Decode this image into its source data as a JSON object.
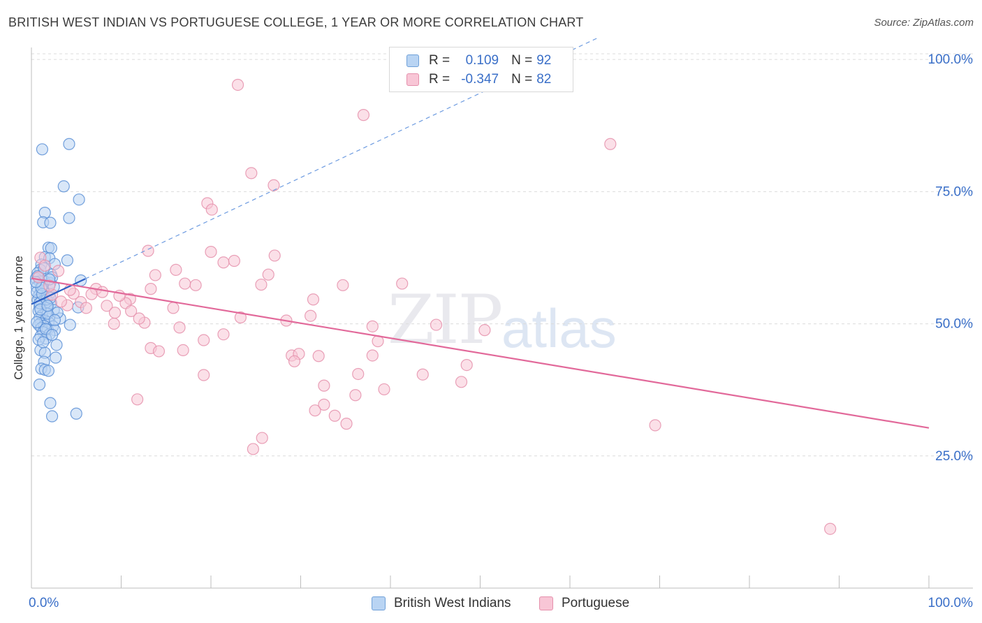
{
  "header": {
    "title": "BRITISH WEST INDIAN VS PORTUGUESE COLLEGE, 1 YEAR OR MORE CORRELATION CHART",
    "source": "Source: ZipAtlas.com"
  },
  "watermark": {
    "zip": "ZIP",
    "atlas": "atlas"
  },
  "legend": {
    "series": [
      {
        "r_label": "R =",
        "r_value": "0.109",
        "n_label": "N =",
        "n_value": "92"
      },
      {
        "r_label": "R =",
        "r_value": "-0.347",
        "n_label": "N =",
        "n_value": "82"
      }
    ]
  },
  "bottom_legend": {
    "blue": "British West Indians",
    "pink": "Portuguese"
  },
  "colors": {
    "blue_fill": "#b9d4f3",
    "blue_stroke": "#5a8fd6",
    "blue_line": "#2c5fc4",
    "pink_fill": "#f8c6d6",
    "pink_stroke": "#e590ac",
    "pink_line": "#e2699a",
    "tick_text": "#3a6fc8",
    "grid": "#dcdcdc"
  },
  "chart_data": {
    "type": "scatter",
    "title": "BRITISH WEST INDIAN VS PORTUGUESE COLLEGE, 1 YEAR OR MORE CORRELATION CHART",
    "xlabel": "",
    "ylabel": "College, 1 year or more",
    "xlim": [
      0,
      100
    ],
    "ylim": [
      0,
      102
    ],
    "x_tick_labels": [
      "0.0%",
      "100.0%"
    ],
    "y_ticks": [
      25,
      50,
      75,
      100
    ],
    "y_tick_labels": [
      "25.0%",
      "50.0%",
      "75.0%",
      "100.0%"
    ],
    "series": [
      {
        "name": "British West Indians",
        "r": 0.109,
        "n": 92,
        "trend": {
          "x0": 0.0,
          "y0": 53.7,
          "x1": 6.0,
          "y1": 58.5,
          "dashed_x1": 63.0,
          "dashed_y1": 104.0
        },
        "points": [
          [
            1.2,
            83.0
          ],
          [
            4.2,
            84.0
          ],
          [
            3.6,
            76.0
          ],
          [
            5.3,
            73.5
          ],
          [
            1.5,
            71.0
          ],
          [
            4.2,
            70.0
          ],
          [
            1.3,
            69.2
          ],
          [
            2.1,
            69.1
          ],
          [
            1.9,
            64.4
          ],
          [
            2.2,
            64.3
          ],
          [
            1.5,
            62.6
          ],
          [
            2.0,
            62.4
          ],
          [
            1.1,
            61.2
          ],
          [
            4.0,
            62.0
          ],
          [
            2.6,
            61.3
          ],
          [
            1.0,
            60.2
          ],
          [
            0.7,
            59.6
          ],
          [
            2.2,
            59.3
          ],
          [
            0.5,
            58.6
          ],
          [
            1.4,
            58.1
          ],
          [
            0.9,
            58.0
          ],
          [
            2.1,
            57.7
          ],
          [
            5.5,
            58.2
          ],
          [
            0.6,
            56.9
          ],
          [
            1.3,
            56.3
          ],
          [
            1.0,
            55.8
          ],
          [
            2.0,
            55.6
          ],
          [
            0.8,
            55.3
          ],
          [
            1.5,
            55.0
          ],
          [
            0.7,
            54.5
          ],
          [
            1.1,
            54.2
          ],
          [
            2.2,
            53.9
          ],
          [
            1.7,
            53.6
          ],
          [
            0.9,
            53.2
          ],
          [
            1.8,
            53.0
          ],
          [
            2.5,
            52.6
          ],
          [
            0.8,
            52.4
          ],
          [
            5.2,
            53.1
          ],
          [
            1.6,
            52.0
          ],
          [
            1.2,
            51.6
          ],
          [
            2.0,
            51.4
          ],
          [
            0.9,
            51.1
          ],
          [
            3.2,
            51.0
          ],
          [
            1.5,
            50.6
          ],
          [
            1.9,
            50.3
          ],
          [
            1.0,
            50.1
          ],
          [
            0.8,
            49.8
          ],
          [
            1.4,
            49.6
          ],
          [
            2.4,
            49.5
          ],
          [
            4.3,
            49.8
          ],
          [
            1.1,
            49.2
          ],
          [
            1.8,
            48.9
          ],
          [
            2.6,
            48.8
          ],
          [
            1.3,
            48.4
          ],
          [
            2.0,
            48.0
          ],
          [
            1.0,
            47.6
          ],
          [
            1.6,
            47.2
          ],
          [
            2.8,
            46.0
          ],
          [
            1.0,
            45.0
          ],
          [
            1.5,
            44.5
          ],
          [
            2.7,
            43.6
          ],
          [
            1.4,
            42.8
          ],
          [
            1.1,
            41.5
          ],
          [
            1.5,
            41.3
          ],
          [
            1.9,
            41.1
          ],
          [
            0.9,
            38.5
          ],
          [
            2.1,
            35.0
          ],
          [
            2.3,
            32.5
          ],
          [
            5.0,
            33.0
          ],
          [
            0.6,
            56.0
          ],
          [
            1.2,
            57.3
          ],
          [
            2.3,
            58.8
          ],
          [
            0.9,
            53.9
          ],
          [
            1.7,
            54.6
          ],
          [
            2.9,
            52.1
          ],
          [
            0.6,
            50.3
          ],
          [
            1.8,
            51.9
          ],
          [
            1.2,
            55.6
          ],
          [
            2.5,
            57.0
          ],
          [
            0.7,
            59.0
          ],
          [
            1.4,
            60.5
          ],
          [
            2.0,
            58.4
          ],
          [
            1.0,
            52.7
          ],
          [
            1.6,
            49.0
          ],
          [
            2.3,
            47.9
          ],
          [
            0.8,
            47.0
          ],
          [
            1.3,
            46.5
          ],
          [
            2.1,
            54.9
          ],
          [
            1.1,
            56.8
          ],
          [
            1.8,
            53.4
          ],
          [
            0.5,
            57.9
          ],
          [
            2.6,
            50.7
          ]
        ]
      },
      {
        "name": "Portuguese",
        "r": -0.347,
        "n": 82,
        "trend": {
          "x0": 0.0,
          "y0": 58.6,
          "x1": 100.0,
          "y1": 30.3
        },
        "points": [
          [
            23.0,
            95.2
          ],
          [
            37.0,
            89.5
          ],
          [
            64.5,
            84.0
          ],
          [
            24.5,
            78.5
          ],
          [
            27.0,
            76.2
          ],
          [
            19.6,
            72.8
          ],
          [
            20.1,
            71.6
          ],
          [
            13.0,
            63.8
          ],
          [
            20.0,
            63.6
          ],
          [
            27.1,
            62.9
          ],
          [
            21.4,
            61.6
          ],
          [
            22.6,
            61.9
          ],
          [
            16.1,
            60.2
          ],
          [
            1.0,
            62.5
          ],
          [
            13.8,
            59.2
          ],
          [
            26.4,
            59.3
          ],
          [
            3.0,
            60.0
          ],
          [
            17.1,
            57.6
          ],
          [
            18.3,
            57.3
          ],
          [
            25.6,
            57.4
          ],
          [
            34.7,
            57.3
          ],
          [
            41.3,
            57.6
          ],
          [
            7.2,
            56.6
          ],
          [
            13.3,
            56.6
          ],
          [
            4.7,
            55.7
          ],
          [
            6.7,
            55.6
          ],
          [
            2.3,
            55.5
          ],
          [
            11.0,
            54.7
          ],
          [
            5.5,
            54.1
          ],
          [
            10.5,
            53.9
          ],
          [
            31.4,
            54.6
          ],
          [
            8.4,
            53.4
          ],
          [
            15.8,
            53.0
          ],
          [
            4.0,
            53.5
          ],
          [
            9.3,
            52.1
          ],
          [
            11.1,
            52.4
          ],
          [
            23.3,
            51.2
          ],
          [
            31.1,
            51.5
          ],
          [
            28.4,
            50.6
          ],
          [
            9.2,
            50.0
          ],
          [
            12.6,
            50.2
          ],
          [
            38.0,
            49.5
          ],
          [
            45.1,
            49.8
          ],
          [
            16.5,
            49.3
          ],
          [
            50.5,
            48.8
          ],
          [
            21.4,
            48.0
          ],
          [
            19.2,
            46.9
          ],
          [
            38.6,
            46.7
          ],
          [
            13.3,
            45.4
          ],
          [
            14.2,
            44.8
          ],
          [
            16.9,
            45.0
          ],
          [
            29.0,
            44.0
          ],
          [
            29.8,
            44.3
          ],
          [
            32.0,
            43.9
          ],
          [
            38.0,
            44.0
          ],
          [
            29.3,
            42.9
          ],
          [
            48.5,
            42.2
          ],
          [
            36.4,
            40.5
          ],
          [
            43.6,
            40.4
          ],
          [
            19.2,
            40.3
          ],
          [
            47.9,
            39.0
          ],
          [
            32.6,
            38.3
          ],
          [
            39.3,
            37.6
          ],
          [
            36.1,
            36.5
          ],
          [
            11.8,
            35.7
          ],
          [
            32.6,
            34.7
          ],
          [
            31.6,
            33.6
          ],
          [
            33.8,
            32.6
          ],
          [
            35.1,
            31.1
          ],
          [
            69.5,
            30.8
          ],
          [
            25.7,
            28.4
          ],
          [
            24.7,
            26.3
          ],
          [
            89.0,
            11.2
          ],
          [
            0.8,
            58.8
          ],
          [
            2.0,
            57.2
          ],
          [
            4.3,
            56.4
          ],
          [
            7.9,
            56.0
          ],
          [
            9.8,
            55.3
          ],
          [
            3.3,
            54.2
          ],
          [
            6.1,
            53.0
          ],
          [
            12.0,
            51.0
          ],
          [
            1.5,
            61.0
          ]
        ]
      }
    ]
  }
}
